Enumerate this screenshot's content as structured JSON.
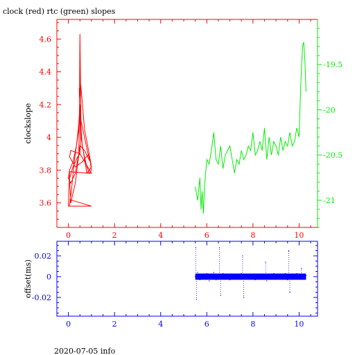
{
  "title": "clock (red) rtc (green) slopes",
  "footer": "2020-07-05 info",
  "colors": {
    "clock": "#ff0000",
    "rtc": "#00ee00",
    "offset": "#0000ff",
    "axis_black": "#000000"
  },
  "chart_data": [
    {
      "type": "line",
      "title": "clock (red) rtc (green) slopes",
      "xlabel": "",
      "ylabel": "clockslope",
      "xlim": [
        -0.5,
        10.8
      ],
      "ylim": [
        3.45,
        4.72
      ],
      "y2lim": [
        -21.3,
        -19.0
      ],
      "x_ticks": [
        0,
        2,
        4,
        6,
        8,
        10
      ],
      "y_ticks": [
        3.6,
        3.8,
        4,
        4.2,
        4.4,
        4.6
      ],
      "y_tick_labels": [
        "3.6",
        "3.8",
        "4",
        "4.2",
        "4.4",
        "4.6"
      ],
      "y2_ticks": [
        -21,
        -20.5,
        -20,
        -19.5
      ],
      "y2_tick_labels": [
        "-21",
        "-20.5",
        "-20",
        "-19.5"
      ],
      "series": [
        {
          "name": "clock",
          "axis": "left",
          "x": [
            0.05,
            0.15,
            0.25,
            0.35,
            0.45,
            0.5,
            0.55,
            0.6,
            0.7,
            0.8,
            0.9,
            1.0,
            0.95,
            0.85,
            0.7,
            0.55,
            0.5,
            0.45,
            0.35,
            0.2,
            0.05,
            0.0,
            0.1,
            0.3,
            0.45,
            0.5,
            0.55,
            0.7,
            0.9,
            1.0,
            0.8,
            0.55,
            0.5,
            0.48,
            0.52,
            0.5,
            0.47,
            0.5,
            0.53,
            0.5,
            0.4,
            0.2,
            0.05,
            0.1,
            0.3,
            0.5,
            0.7,
            0.95,
            0.9,
            0.6,
            0.3,
            0.05,
            0.1,
            0.5,
            1.0,
            0.05,
            0.0,
            1.0,
            0.05
          ],
          "y": [
            3.58,
            3.7,
            3.85,
            3.95,
            4.05,
            4.15,
            4.05,
            3.95,
            3.88,
            3.82,
            3.78,
            3.8,
            3.85,
            3.9,
            4.0,
            4.1,
            4.2,
            4.08,
            3.95,
            3.85,
            3.8,
            3.75,
            3.72,
            3.78,
            3.9,
            4.35,
            4.3,
            4.05,
            3.9,
            3.82,
            3.78,
            4.0,
            4.63,
            4.2,
            4.4,
            4.25,
            4.3,
            4.1,
            4.0,
            3.9,
            3.88,
            3.82,
            3.75,
            3.6,
            3.72,
            3.95,
            3.92,
            3.85,
            3.9,
            3.85,
            3.82,
            3.88,
            3.92,
            3.9,
            3.78,
            3.79,
            3.58,
            3.58,
            3.62
          ]
        },
        {
          "name": "rtc",
          "axis": "right",
          "x": [
            5.5,
            5.6,
            5.7,
            5.75,
            5.8,
            5.85,
            5.9,
            5.95,
            6.0,
            6.1,
            6.2,
            6.3,
            6.4,
            6.5,
            6.6,
            6.7,
            6.8,
            6.9,
            7.0,
            7.1,
            7.2,
            7.3,
            7.4,
            7.5,
            7.6,
            7.7,
            7.8,
            7.9,
            8.0,
            8.1,
            8.2,
            8.3,
            8.4,
            8.5,
            8.6,
            8.7,
            8.8,
            8.9,
            9.0,
            9.1,
            9.2,
            9.3,
            9.4,
            9.5,
            9.6,
            9.7,
            9.8,
            9.9,
            10.0,
            10.05,
            10.1,
            10.15,
            10.2,
            10.25,
            10.3
          ],
          "y": [
            -20.85,
            -21.0,
            -20.75,
            -21.1,
            -20.9,
            -21.15,
            -20.85,
            -20.7,
            -20.55,
            -20.6,
            -20.45,
            -20.25,
            -20.55,
            -20.6,
            -20.4,
            -20.65,
            -20.5,
            -20.45,
            -20.4,
            -20.55,
            -20.7,
            -20.55,
            -20.6,
            -20.45,
            -20.55,
            -20.5,
            -20.4,
            -20.45,
            -20.25,
            -20.5,
            -20.45,
            -20.35,
            -20.45,
            -20.2,
            -20.55,
            -20.3,
            -20.5,
            -20.35,
            -20.4,
            -20.5,
            -20.3,
            -20.45,
            -20.35,
            -20.4,
            -20.25,
            -20.4,
            -20.35,
            -20.2,
            -20.3,
            -19.9,
            -19.55,
            -19.3,
            -19.25,
            -19.45,
            -19.8
          ]
        }
      ]
    },
    {
      "type": "scatter",
      "xlabel": "",
      "ylabel": "offset(ms)",
      "xlim": [
        -0.5,
        10.8
      ],
      "ylim": [
        -0.038,
        0.034
      ],
      "x_ticks": [
        0,
        2,
        4,
        6,
        8,
        10
      ],
      "y_ticks": [
        -0.02,
        0,
        0.02
      ],
      "y_tick_labels": [
        "-0.02",
        "0",
        "0.02"
      ],
      "series": [
        {
          "name": "offset",
          "x": [
            5.5,
            5.52,
            5.55,
            5.6,
            5.7,
            5.8,
            5.9,
            6.0,
            6.1,
            6.2,
            6.3,
            6.4,
            6.5,
            6.55,
            6.6,
            6.7,
            6.8,
            6.9,
            7.0,
            7.1,
            7.2,
            7.3,
            7.4,
            7.5,
            7.55,
            7.6,
            7.7,
            7.8,
            7.9,
            8.0,
            8.1,
            8.2,
            8.3,
            8.4,
            8.5,
            8.55,
            8.6,
            8.7,
            8.8,
            8.9,
            9.0,
            9.1,
            9.2,
            9.3,
            9.4,
            9.5,
            9.55,
            9.6,
            9.7,
            9.8,
            9.9,
            10.0,
            10.1,
            10.2,
            10.3
          ],
          "y": [
            0.0,
            0.028,
            -0.022,
            0.004,
            -0.003,
            0.002,
            -0.002,
            0.003,
            -0.004,
            0.002,
            0.004,
            -0.003,
            0.001,
            0.028,
            -0.018,
            0.003,
            -0.002,
            0.002,
            -0.003,
            0.001,
            -0.002,
            0.002,
            -0.001,
            0.003,
            0.02,
            -0.02,
            0.002,
            -0.002,
            0.001,
            0.002,
            -0.003,
            0.001,
            -0.002,
            0.002,
            0.001,
            0.014,
            -0.004,
            0.002,
            -0.002,
            0.003,
            -0.002,
            0.002,
            -0.001,
            0.001,
            0.003,
            -0.003,
            0.025,
            -0.015,
            0.002,
            -0.002,
            0.003,
            -0.002,
            0.008,
            -0.002,
            0.001
          ]
        }
      ]
    }
  ]
}
